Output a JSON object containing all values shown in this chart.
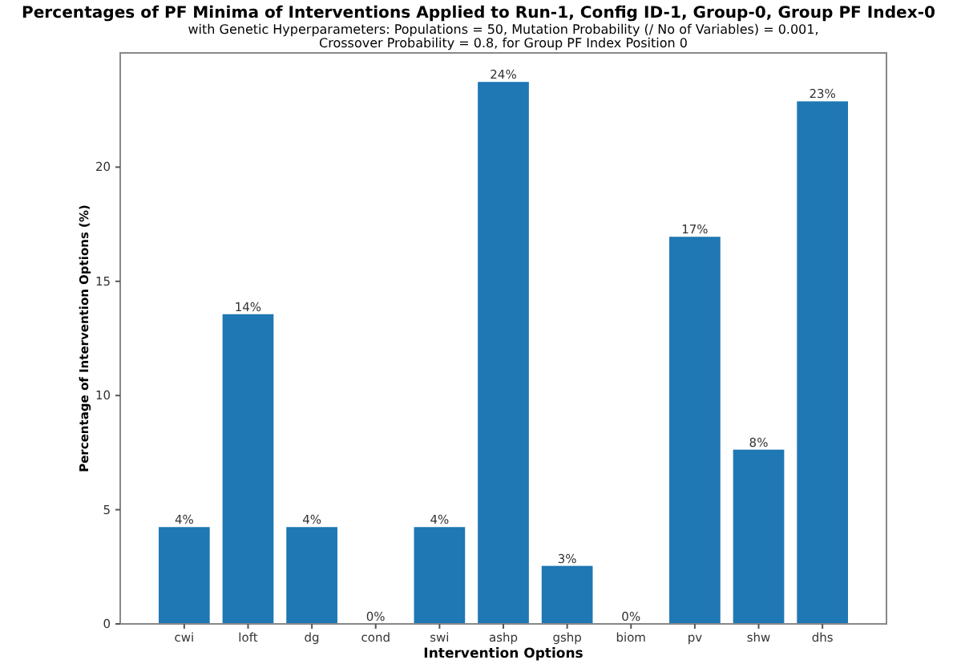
{
  "chart_data": {
    "type": "bar",
    "title": "Percentages of PF Minima of Interventions Applied to Run-1, Config ID-1, Group-0, Group PF Index-0",
    "subtitle": "with Genetic Hyperparameters: Populations = 50, Mutation Probability (/ No of Variables) = 0.001,\nCrossover Probability = 0.8, for Group PF Index Position 0",
    "xlabel": "Intervention Options",
    "ylabel": "Percentage of Intervention Options (%)",
    "categories": [
      "cwi",
      "loft",
      "dg",
      "cond",
      "swi",
      "ashp",
      "gshp",
      "biom",
      "pv",
      "shw",
      "dhs"
    ],
    "values": [
      4.24,
      13.56,
      4.24,
      0,
      4.24,
      23.73,
      2.54,
      0,
      16.95,
      7.63,
      22.88
    ],
    "value_labels": [
      "4%",
      "14%",
      "4%",
      "0%",
      "4%",
      "24%",
      "3%",
      "0%",
      "17%",
      "8%",
      "23%"
    ],
    "color": "#1f77b4",
    "ylim": [
      0,
      25
    ],
    "yticks": [
      0,
      5,
      10,
      15,
      20
    ],
    "grid": false
  }
}
